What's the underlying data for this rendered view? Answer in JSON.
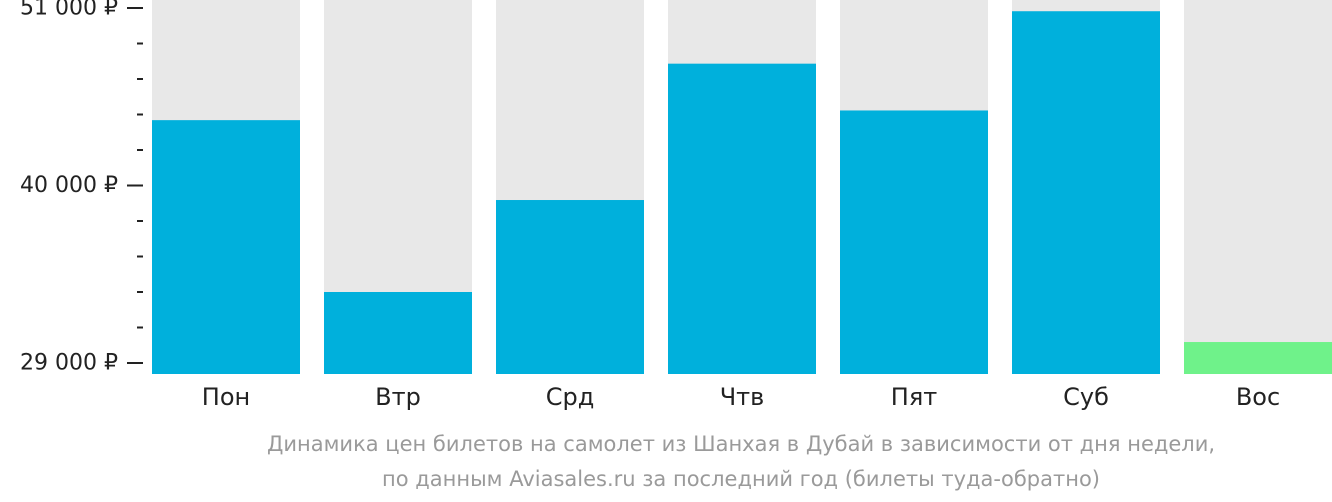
{
  "chart_data": {
    "type": "bar",
    "categories": [
      "Пон",
      "Втр",
      "Срд",
      "Чтв",
      "Пят",
      "Суб",
      "Вос"
    ],
    "values": [
      44050,
      33400,
      39100,
      47550,
      44650,
      50800,
      30300
    ],
    "ylim": [
      29000,
      51000
    ],
    "yticks": [
      29000,
      40000,
      51000
    ],
    "ytick_labels": [
      "29 000 ₽",
      "40 000 ₽",
      "51 000 ₽"
    ],
    "minor_ticks_between_major": 4,
    "highlight_index": 6,
    "colors": {
      "bar": "#00b0dc",
      "highlight": "#6ff28a",
      "background": "#e8e8e8",
      "axis": "#222222"
    },
    "caption": [
      "Динамика цен билетов на самолет из Шанхая в Дубай в зависимости от дня недели,",
      "по данным Aviasales.ru за последний год (билеты туда-обратно)"
    ]
  }
}
